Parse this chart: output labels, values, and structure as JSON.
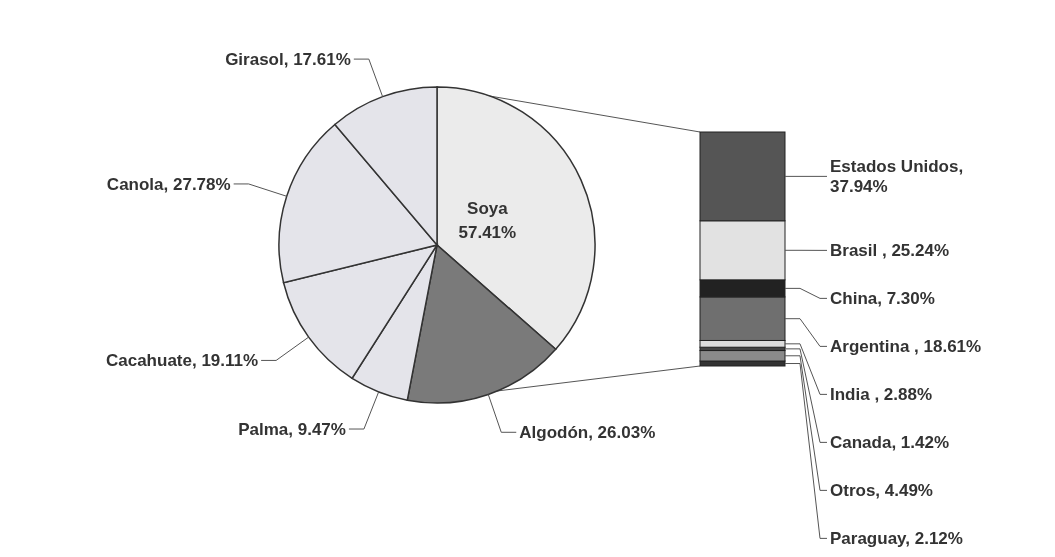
{
  "chart_data": [
    {
      "type": "pie",
      "categories": [
        "Soya",
        "Algodón",
        "Palma",
        "Cacahuate",
        "Canola",
        "Girasol"
      ],
      "values": [
        57.41,
        26.03,
        9.47,
        19.11,
        27.78,
        17.61
      ],
      "value_labels": [
        "57.41%",
        "26.03%",
        "9.47%",
        "19.11%",
        "27.78%",
        "17.61%"
      ],
      "colors": [
        "#ebebeb",
        "#7a7a7a",
        "#e4e4ea",
        "#e4e4ea",
        "#e4e4ea",
        "#e4e4ea"
      ]
    },
    {
      "type": "bar",
      "stacked": true,
      "categories": [
        null
      ],
      "series": [
        {
          "color": "#333333",
          "values": [
            2.12
          ],
          "value_labels": [
            "Paraguay, 2.12%"
          ]
        },
        {
          "color": "#8a8a8a",
          "values": [
            4.49
          ],
          "value_labels": [
            "Otros, 4.49%"
          ]
        },
        {
          "color": "#444444",
          "values": [
            1.42
          ],
          "value_labels": [
            "Canada, 1.42%"
          ]
        },
        {
          "color": "#dddddd",
          "values": [
            2.88
          ],
          "value_labels": [
            "India , 2.88%"
          ]
        },
        {
          "color": "#6f6f6f",
          "values": [
            18.61
          ],
          "value_labels": [
            "Argentina , 18.61%"
          ]
        },
        {
          "color": "#222222",
          "values": [
            7.3
          ],
          "value_labels": [
            "China, 7.30%"
          ]
        },
        {
          "color": "#e2e2e2",
          "values": [
            25.24
          ],
          "value_labels": [
            "Brasil , 25.24%"
          ]
        },
        {
          "color": "#555555",
          "values": [
            37.94
          ],
          "value_labels": [
            "Estados Unidos, 37.94%"
          ]
        }
      ]
    }
  ]
}
